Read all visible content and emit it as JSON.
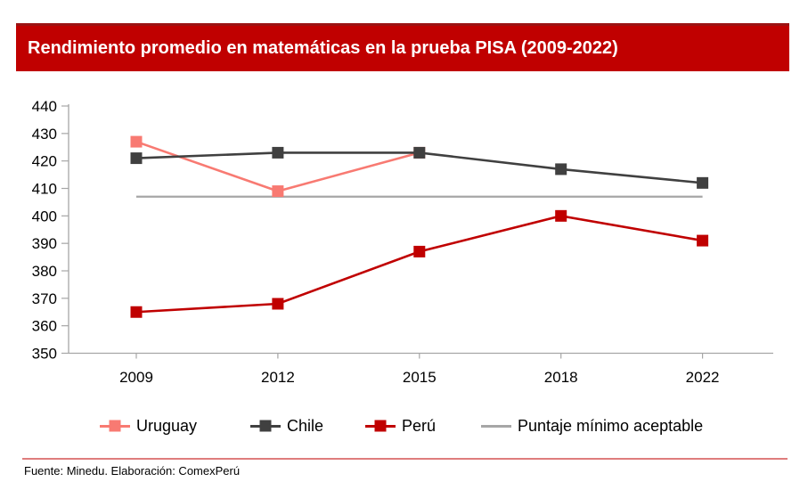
{
  "header": {
    "title": "Rendimiento promedio en matemáticas en la prueba PISA (2009-2022)",
    "bar_color": "#c00000",
    "bar_border_color": "#9b1313"
  },
  "chart_data": {
    "type": "line",
    "title": "Rendimiento promedio en matemáticas en la prueba PISA (2009-2022)",
    "categories": [
      "2009",
      "2012",
      "2015",
      "2018",
      "2022"
    ],
    "series": [
      {
        "name": "Uruguay",
        "color": "#f87a72",
        "marker": "square",
        "values": [
          427,
          409,
          423,
          null,
          null
        ]
      },
      {
        "name": "Chile",
        "color": "#404040",
        "marker": "square",
        "values": [
          421,
          423,
          423,
          417,
          412
        ]
      },
      {
        "name": "Perú",
        "color": "#c00000",
        "marker": "square",
        "values": [
          365,
          368,
          387,
          400,
          391
        ]
      }
    ],
    "reference_line": {
      "name": "Puntaje mínimo aceptable",
      "color": "#a6a6a6",
      "value": 407
    },
    "xlabel": "",
    "ylabel": "",
    "ylim": [
      350,
      440
    ],
    "ytick_step": 10,
    "y_ticks": [
      440,
      430,
      420,
      410,
      400,
      390,
      380,
      370,
      360,
      350
    ],
    "grid": false,
    "legend_position": "bottom",
    "axis_color": "#a6a6a6",
    "tick_label_color": "#000000"
  },
  "legend": {
    "items": [
      {
        "label": "Uruguay",
        "has_marker": true
      },
      {
        "label": "Chile",
        "has_marker": true
      },
      {
        "label": "Perú",
        "has_marker": true
      },
      {
        "label": "Puntaje mínimo aceptable",
        "has_marker": false
      }
    ]
  },
  "footer": {
    "source": "Fuente: Minedu. Elaboración: ComexPerú",
    "separator_color": "#df7d7d"
  }
}
